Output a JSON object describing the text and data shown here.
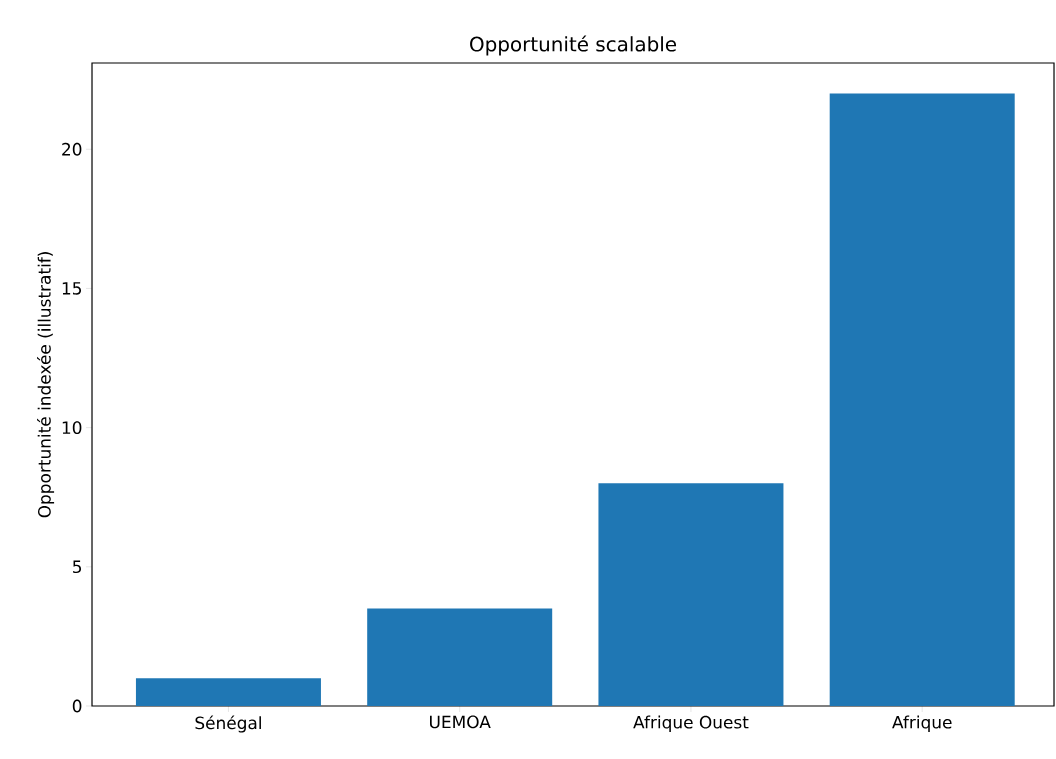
{
  "chart_data": {
    "type": "bar",
    "title": "Opportunité scalable",
    "ylabel": "Opportunité indexée (illustratif)",
    "categories": [
      "Sénégal",
      "UEMOA",
      "Afrique Ouest",
      "Afrique"
    ],
    "values": [
      1,
      3.5,
      8,
      22
    ],
    "color": "#1f77b4",
    "ylim": [
      0,
      23.1
    ],
    "yticks": [
      0,
      5,
      10,
      15,
      20
    ],
    "grid": false
  }
}
